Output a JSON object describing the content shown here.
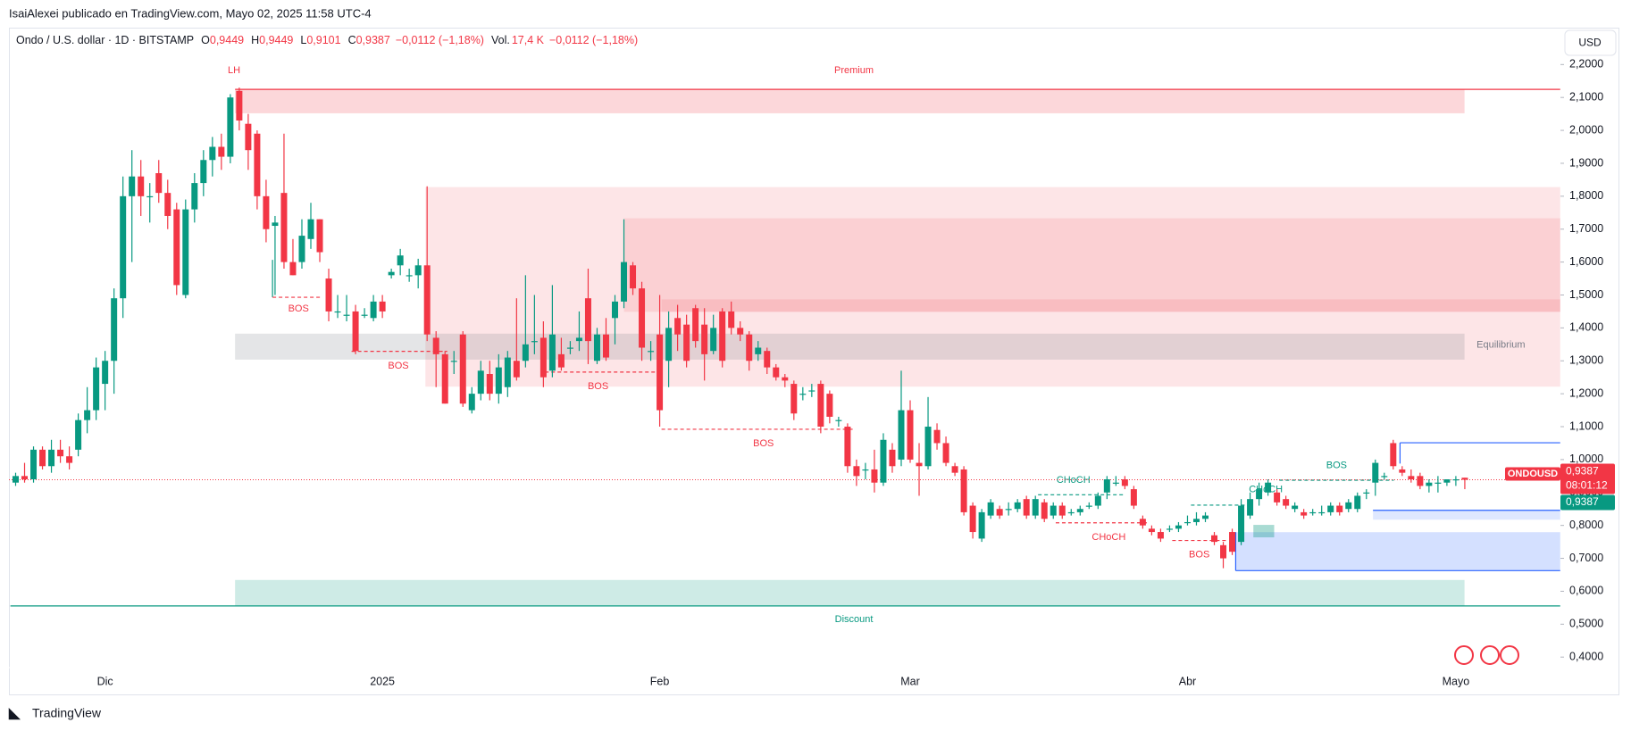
{
  "header": {
    "published": "IsaiAlexei publicado en TradingView.com, Mayo 02, 2025 11:58 UTC-4",
    "symbol": "Ondo / U.S. dollar · 1D · BITSTAMP",
    "ohlc": [
      {
        "label": "O",
        "value": "0,9449"
      },
      {
        "label": "H",
        "value": "0,9449"
      },
      {
        "label": "L",
        "value": "0,9101"
      },
      {
        "label": "C",
        "value": "0,9387"
      }
    ],
    "change": "−0,0112 (−1,18%)",
    "volume_label": "Vol.",
    "volume": "17,4 K",
    "volume_change": "−0,0112 (−1,18%)"
  },
  "chart_data": {
    "type": "candlestick",
    "categories": [
      null,
      null,
      null,
      null,
      null,
      null,
      null,
      null,
      null,
      null,
      "Dic",
      null,
      null,
      null,
      null,
      null,
      null,
      null,
      null,
      null,
      null,
      null,
      null,
      null,
      null,
      null,
      null,
      null,
      null,
      null,
      null,
      null,
      null,
      null,
      null,
      null,
      null,
      null,
      null,
      null,
      null,
      "2025",
      null,
      null,
      null,
      null,
      null,
      null,
      null,
      null,
      null,
      null,
      null,
      null,
      null,
      null,
      null,
      null,
      null,
      null,
      null,
      null,
      null,
      null,
      null,
      null,
      null,
      null,
      null,
      null,
      null,
      null,
      "Feb",
      null,
      null,
      null,
      null,
      null,
      null,
      null,
      null,
      null,
      null,
      null,
      null,
      null,
      null,
      null,
      null,
      null,
      null,
      null,
      null,
      null,
      null,
      null,
      null,
      null,
      null,
      null,
      "Mar",
      null,
      null,
      null,
      null,
      null,
      null,
      null,
      null,
      null,
      null,
      null,
      null,
      null,
      null,
      null,
      null,
      null,
      null,
      null,
      null,
      null,
      null,
      null,
      null,
      null,
      null,
      null,
      null,
      null,
      null,
      "Abr",
      null,
      null,
      null,
      null,
      null,
      null,
      null,
      null,
      null,
      null,
      null,
      null,
      null,
      null,
      null,
      null,
      null,
      null,
      null,
      null,
      null,
      null,
      null,
      null,
      null,
      null,
      null,
      null,
      null,
      "Mayo",
      null
    ],
    "candles": [
      [
        0.93,
        0.96,
        0.92,
        0.95
      ],
      [
        0.95,
        0.99,
        0.93,
        0.94
      ],
      [
        0.94,
        1.04,
        0.93,
        1.03
      ],
      [
        1.03,
        1.04,
        0.97,
        0.98
      ],
      [
        0.98,
        1.06,
        0.96,
        1.03
      ],
      [
        1.03,
        1.06,
        0.99,
        1.01
      ],
      [
        1.01,
        1.04,
        0.97,
        0.99
      ],
      [
        1.03,
        1.14,
        1.01,
        1.12
      ],
      [
        1.12,
        1.22,
        1.08,
        1.15
      ],
      [
        1.15,
        1.31,
        1.12,
        1.28
      ],
      [
        1.23,
        1.33,
        1.15,
        1.3
      ],
      [
        1.3,
        1.52,
        1.2,
        1.49
      ],
      [
        1.49,
        1.86,
        1.43,
        1.8
      ],
      [
        1.8,
        1.94,
        1.6,
        1.86
      ],
      [
        1.86,
        1.91,
        1.74,
        1.8
      ],
      [
        1.8,
        1.84,
        1.72,
        1.8
      ],
      [
        1.87,
        1.91,
        1.78,
        1.81
      ],
      [
        1.81,
        1.85,
        1.7,
        1.74
      ],
      [
        1.76,
        1.78,
        1.5,
        1.53
      ],
      [
        1.5,
        1.79,
        1.49,
        1.76
      ],
      [
        1.76,
        1.87,
        1.72,
        1.84
      ],
      [
        1.84,
        1.94,
        1.8,
        1.91
      ],
      [
        1.91,
        1.98,
        1.86,
        1.95
      ],
      [
        1.95,
        1.99,
        1.88,
        1.92
      ],
      [
        1.92,
        2.11,
        1.9,
        2.1
      ],
      [
        2.12,
        2.13,
        2.0,
        2.03
      ],
      [
        2.02,
        2.05,
        1.88,
        1.94
      ],
      [
        1.99,
        2.0,
        1.76,
        1.8
      ],
      [
        1.8,
        1.85,
        1.66,
        1.7
      ],
      [
        1.71,
        1.74,
        1.5,
        1.72
      ],
      [
        1.81,
        1.99,
        1.58,
        1.6
      ],
      [
        1.6,
        1.67,
        1.56,
        1.56
      ],
      [
        1.6,
        1.73,
        1.58,
        1.68
      ],
      [
        1.67,
        1.78,
        1.64,
        1.73
      ],
      [
        1.73,
        1.73,
        1.6,
        1.63
      ],
      [
        1.55,
        1.58,
        1.42,
        1.45
      ],
      [
        1.45,
        1.5,
        1.43,
        1.45
      ],
      [
        1.44,
        1.5,
        1.42,
        1.44
      ],
      [
        1.45,
        1.47,
        1.32,
        1.33
      ],
      [
        1.44,
        1.46,
        1.43,
        1.44
      ],
      [
        1.43,
        1.5,
        1.42,
        1.48
      ],
      [
        1.48,
        1.5,
        1.43,
        1.45
      ],
      [
        1.56,
        1.58,
        1.55,
        1.57
      ],
      [
        1.59,
        1.64,
        1.56,
        1.62
      ],
      [
        1.56,
        1.58,
        1.54,
        1.56
      ],
      [
        1.56,
        1.61,
        1.52,
        1.59
      ],
      [
        1.59,
        1.83,
        1.36,
        1.38
      ],
      [
        1.37,
        1.39,
        1.22,
        1.32
      ],
      [
        1.32,
        1.33,
        1.17,
        1.17
      ],
      [
        1.3,
        1.33,
        1.26,
        1.3
      ],
      [
        1.38,
        1.39,
        1.16,
        1.17
      ],
      [
        1.15,
        1.22,
        1.14,
        1.2
      ],
      [
        1.2,
        1.3,
        1.18,
        1.27
      ],
      [
        1.26,
        1.3,
        1.18,
        1.2
      ],
      [
        1.2,
        1.32,
        1.17,
        1.28
      ],
      [
        1.22,
        1.33,
        1.19,
        1.31
      ],
      [
        1.3,
        1.49,
        1.24,
        1.25
      ],
      [
        1.3,
        1.56,
        1.28,
        1.35
      ],
      [
        1.36,
        1.5,
        1.32,
        1.36
      ],
      [
        1.37,
        1.42,
        1.22,
        1.25
      ],
      [
        1.27,
        1.53,
        1.25,
        1.38
      ],
      [
        1.32,
        1.37,
        1.27,
        1.28
      ],
      [
        1.34,
        1.36,
        1.32,
        1.34
      ],
      [
        1.36,
        1.45,
        1.33,
        1.37
      ],
      [
        1.49,
        1.58,
        1.29,
        1.36
      ],
      [
        1.3,
        1.4,
        1.29,
        1.38
      ],
      [
        1.38,
        1.43,
        1.3,
        1.31
      ],
      [
        1.43,
        1.5,
        1.35,
        1.48
      ],
      [
        1.48,
        1.73,
        1.46,
        1.6
      ],
      [
        1.59,
        1.6,
        1.5,
        1.52
      ],
      [
        1.52,
        1.54,
        1.3,
        1.34
      ],
      [
        1.33,
        1.36,
        1.3,
        1.33
      ],
      [
        1.38,
        1.5,
        1.1,
        1.15
      ],
      [
        1.3,
        1.45,
        1.22,
        1.4
      ],
      [
        1.43,
        1.47,
        1.33,
        1.38
      ],
      [
        1.41,
        1.44,
        1.28,
        1.3
      ],
      [
        1.46,
        1.47,
        1.34,
        1.36
      ],
      [
        1.41,
        1.46,
        1.24,
        1.32
      ],
      [
        1.33,
        1.44,
        1.32,
        1.4
      ],
      [
        1.45,
        1.46,
        1.28,
        1.3
      ],
      [
        1.45,
        1.48,
        1.38,
        1.4
      ],
      [
        1.4,
        1.42,
        1.36,
        1.38
      ],
      [
        1.38,
        1.39,
        1.27,
        1.3
      ],
      [
        1.32,
        1.36,
        1.3,
        1.34
      ],
      [
        1.33,
        1.34,
        1.26,
        1.28
      ],
      [
        1.28,
        1.29,
        1.24,
        1.25
      ],
      [
        1.25,
        1.26,
        1.22,
        1.24
      ],
      [
        1.23,
        1.24,
        1.12,
        1.14
      ],
      [
        1.2,
        1.22,
        1.18,
        1.2
      ],
      [
        1.21,
        1.23,
        1.19,
        1.21
      ],
      [
        1.23,
        1.24,
        1.08,
        1.1
      ],
      [
        1.2,
        1.21,
        1.11,
        1.13
      ],
      [
        1.12,
        1.13,
        1.1,
        1.12
      ],
      [
        1.1,
        1.11,
        0.96,
        0.98
      ],
      [
        0.98,
        1.0,
        0.92,
        0.95
      ],
      [
        0.97,
        0.99,
        0.94,
        0.97
      ],
      [
        0.97,
        1.03,
        0.9,
        0.93
      ],
      [
        0.93,
        1.08,
        0.92,
        1.06
      ],
      [
        1.03,
        1.05,
        0.96,
        0.98
      ],
      [
        1.0,
        1.27,
        0.98,
        1.15
      ],
      [
        1.15,
        1.18,
        0.99,
        1.0
      ],
      [
        0.99,
        1.05,
        0.89,
        0.98
      ],
      [
        0.98,
        1.19,
        0.97,
        1.1
      ],
      [
        1.09,
        1.11,
        1.03,
        1.05
      ],
      [
        1.05,
        1.07,
        0.98,
        0.99
      ],
      [
        0.98,
        0.99,
        0.95,
        0.96
      ],
      [
        0.97,
        0.98,
        0.83,
        0.84
      ],
      [
        0.86,
        0.87,
        0.76,
        0.78
      ],
      [
        0.76,
        0.85,
        0.75,
        0.84
      ],
      [
        0.83,
        0.88,
        0.82,
        0.87
      ],
      [
        0.85,
        0.86,
        0.82,
        0.83
      ],
      [
        0.85,
        0.87,
        0.83,
        0.85
      ],
      [
        0.85,
        0.88,
        0.84,
        0.87
      ],
      [
        0.88,
        0.89,
        0.82,
        0.83
      ],
      [
        0.83,
        0.89,
        0.82,
        0.88
      ],
      [
        0.87,
        0.88,
        0.81,
        0.82
      ],
      [
        0.83,
        0.87,
        0.82,
        0.86
      ],
      [
        0.86,
        0.87,
        0.82,
        0.83
      ],
      [
        0.84,
        0.85,
        0.83,
        0.84
      ],
      [
        0.84,
        0.86,
        0.83,
        0.85
      ],
      [
        0.86,
        0.87,
        0.85,
        0.86
      ],
      [
        0.86,
        0.9,
        0.85,
        0.89
      ],
      [
        0.9,
        0.95,
        0.88,
        0.94
      ],
      [
        0.93,
        0.95,
        0.92,
        0.93
      ],
      [
        0.94,
        0.95,
        0.91,
        0.92
      ],
      [
        0.91,
        0.92,
        0.85,
        0.86
      ],
      [
        0.82,
        0.83,
        0.79,
        0.8
      ],
      [
        0.79,
        0.8,
        0.77,
        0.78
      ],
      [
        0.78,
        0.79,
        0.75,
        0.76
      ],
      [
        0.79,
        0.8,
        0.78,
        0.79
      ],
      [
        0.79,
        0.81,
        0.78,
        0.8
      ],
      [
        0.81,
        0.83,
        0.8,
        0.81
      ],
      [
        0.81,
        0.84,
        0.8,
        0.82
      ],
      [
        0.82,
        0.84,
        0.81,
        0.83
      ],
      [
        0.77,
        0.78,
        0.74,
        0.75
      ],
      [
        0.74,
        0.75,
        0.67,
        0.7
      ],
      [
        0.78,
        0.79,
        0.71,
        0.72
      ],
      [
        0.75,
        0.88,
        0.74,
        0.86
      ],
      [
        0.83,
        0.9,
        0.82,
        0.88
      ],
      [
        0.88,
        0.93,
        0.86,
        0.91
      ],
      [
        0.9,
        0.94,
        0.89,
        0.93
      ],
      [
        0.9,
        0.91,
        0.86,
        0.87
      ],
      [
        0.88,
        0.89,
        0.85,
        0.86
      ],
      [
        0.85,
        0.87,
        0.84,
        0.86
      ],
      [
        0.84,
        0.85,
        0.82,
        0.83
      ],
      [
        0.84,
        0.85,
        0.83,
        0.84
      ],
      [
        0.84,
        0.86,
        0.83,
        0.84
      ],
      [
        0.84,
        0.87,
        0.83,
        0.86
      ],
      [
        0.86,
        0.87,
        0.83,
        0.84
      ],
      [
        0.85,
        0.88,
        0.84,
        0.87
      ],
      [
        0.85,
        0.9,
        0.84,
        0.89
      ],
      [
        0.9,
        0.91,
        0.88,
        0.9
      ],
      [
        0.93,
        1.0,
        0.89,
        0.99
      ],
      [
        0.95,
        0.96,
        0.94,
        0.95
      ],
      [
        1.05,
        1.06,
        0.97,
        0.98
      ],
      [
        0.97,
        0.98,
        0.95,
        0.96
      ],
      [
        0.95,
        0.97,
        0.93,
        0.94
      ],
      [
        0.95,
        0.96,
        0.91,
        0.92
      ],
      [
        0.92,
        0.94,
        0.9,
        0.93
      ],
      [
        0.93,
        0.95,
        0.9,
        0.93
      ],
      [
        0.93,
        0.94,
        0.92,
        0.94
      ],
      [
        0.94,
        0.95,
        0.92,
        0.94
      ],
      [
        0.9449,
        0.9449,
        0.9101,
        0.9387
      ]
    ],
    "up_color": "#089981",
    "down_color": "#f23645",
    "ylim": [
      0.368,
      2.312
    ],
    "yticks": [
      {
        "value": 0.4,
        "label": "0,4000"
      },
      {
        "value": 0.5,
        "label": "0,5000"
      },
      {
        "value": 0.6,
        "label": "0,6000"
      },
      {
        "value": 0.7,
        "label": "0,7000"
      },
      {
        "value": 0.8,
        "label": "0,8000"
      },
      {
        "value": 0.9,
        "label": "0,9000"
      },
      {
        "value": 1.0,
        "label": "1,0000"
      },
      {
        "value": 1.1,
        "label": "1,1000"
      },
      {
        "value": 1.2,
        "label": "1,2000"
      },
      {
        "value": 1.3,
        "label": "1,3000"
      },
      {
        "value": 1.4,
        "label": "1,4000"
      },
      {
        "value": 1.5,
        "label": "1,5000"
      },
      {
        "value": 1.6,
        "label": "1,6000"
      },
      {
        "value": 1.7,
        "label": "1,7000"
      },
      {
        "value": 1.8,
        "label": "1,8000"
      },
      {
        "value": 1.9,
        "label": "1,9000"
      },
      {
        "value": 2.0,
        "label": "2,0000"
      },
      {
        "value": 2.1,
        "label": "2,1000"
      },
      {
        "value": 2.2,
        "label": "2,2000"
      }
    ],
    "currency": "USD",
    "symbol_tag": "ONDOUSD",
    "price_tags": [
      {
        "value": 0.9387,
        "label": "0,9387"
      },
      {
        "value": 0.9387,
        "label": "0,9387"
      }
    ],
    "countdown": "08:01:12",
    "annotations": [
      "LH",
      "Premium",
      "BOS",
      "BOS",
      "BOS",
      "BOS",
      "CHoCH",
      "CHoCH",
      "CHoCH",
      "BOS",
      "BOS",
      "Equilibrium",
      "Discount"
    ]
  },
  "footer": {
    "brand": "TradingView"
  }
}
